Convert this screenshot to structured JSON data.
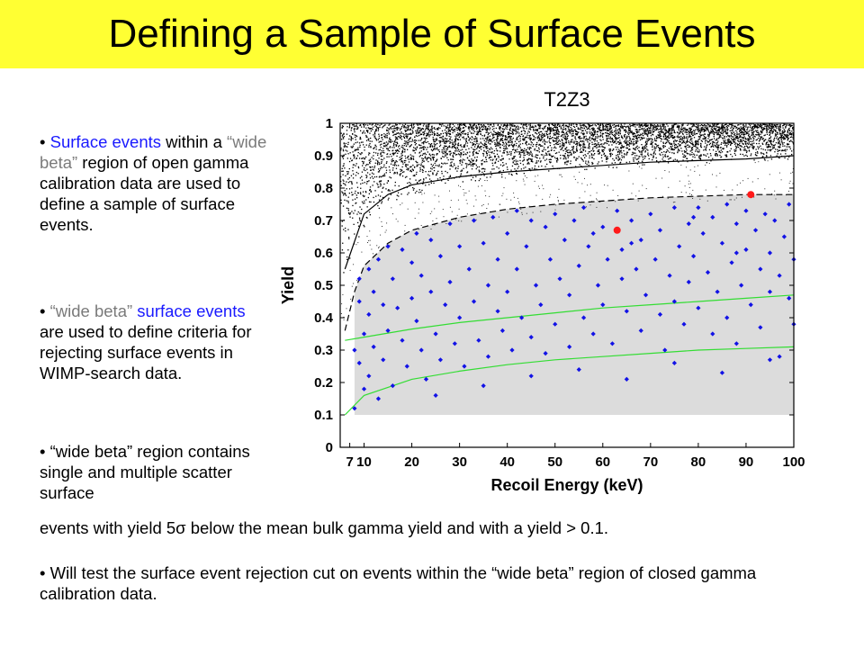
{
  "slide": {
    "title": "Defining a Sample of Surface Events",
    "bullets": [
      {
        "marker": "•",
        "parts": [
          {
            "text": "Surface events",
            "color": "blue"
          },
          {
            "text": " within a ",
            "color": "black"
          },
          {
            "text": "“wide beta”",
            "color": "gray"
          },
          {
            "text": " region of open gamma calibration data are used to define a sample of surface events.",
            "color": "black"
          }
        ]
      },
      {
        "marker": "•",
        "parts": [
          {
            "text": "“wide beta”",
            "color": "gray"
          },
          {
            "text": " surface events",
            "color": "blue"
          },
          {
            "text": " are used to define criteria for rejecting surface events in WIMP-search data.",
            "color": "black"
          }
        ]
      },
      {
        "marker": "•",
        "first_part": " “wide beta” region contains single and multiple scatter surface",
        "continuation": "events with yield 5σ below the mean bulk gamma yield and with a yield > 0.1."
      },
      {
        "marker": "•",
        "text": " Will test the surface event rejection cut on events within the “wide beta” region of closed gamma calibration data."
      }
    ]
  },
  "chart_data": {
    "type": "scatter",
    "title": "T2Z3",
    "xlabel": "Recoil Energy (keV)",
    "ylabel": "Yield",
    "xlim": [
      5,
      100
    ],
    "ylim": [
      0,
      1
    ],
    "x_ticks": [
      7,
      10,
      20,
      30,
      40,
      50,
      60,
      70,
      80,
      90,
      100
    ],
    "x_tick_labels": [
      "7",
      "10",
      "20",
      "30",
      "40",
      "50",
      "60",
      "70",
      "80",
      "90",
      "100"
    ],
    "y_ticks": [
      0,
      0.1,
      0.2,
      0.3,
      0.4,
      0.5,
      0.6,
      0.7,
      0.8,
      0.9,
      1
    ],
    "y_tick_labels": [
      "0",
      "0.1",
      "0.2",
      "0.3",
      "0.4",
      "0.5",
      "0.6",
      "0.7",
      "0.8",
      "0.9",
      "1"
    ],
    "grid": false,
    "wide_beta_region": {
      "x_range": [
        8,
        100
      ],
      "y_lower": 0.1,
      "upper_curve": [
        [
          6,
          0.36
        ],
        [
          8,
          0.48
        ],
        [
          10,
          0.56
        ],
        [
          15,
          0.63
        ],
        [
          20,
          0.67
        ],
        [
          30,
          0.71
        ],
        [
          40,
          0.735
        ],
        [
          50,
          0.75
        ],
        [
          60,
          0.76
        ],
        [
          70,
          0.77
        ],
        [
          80,
          0.775
        ],
        [
          90,
          0.78
        ],
        [
          100,
          0.78
        ]
      ],
      "fill": "#dcdcdc"
    },
    "bulk_gamma_band": {
      "lower_curve": [
        [
          6,
          0.5
        ],
        [
          8,
          0.62
        ],
        [
          10,
          0.68
        ],
        [
          15,
          0.74
        ],
        [
          20,
          0.78
        ],
        [
          30,
          0.815
        ],
        [
          40,
          0.835
        ],
        [
          50,
          0.85
        ],
        [
          60,
          0.86
        ],
        [
          70,
          0.87
        ],
        [
          80,
          0.878
        ],
        [
          90,
          0.885
        ],
        [
          100,
          0.89
        ]
      ],
      "upper_limit": 1.0,
      "color": "#000000"
    },
    "series": [
      {
        "kind": "surface events",
        "color": "#1212e6",
        "marker": "diamond",
        "points": [
          [
            8,
            0.3
          ],
          [
            8,
            0.12
          ],
          [
            9,
            0.45
          ],
          [
            9,
            0.26
          ],
          [
            9,
            0.52
          ],
          [
            10,
            0.35
          ],
          [
            10,
            0.18
          ],
          [
            11,
            0.55
          ],
          [
            11,
            0.41
          ],
          [
            11,
            0.22
          ],
          [
            12,
            0.48
          ],
          [
            12,
            0.31
          ],
          [
            13,
            0.58
          ],
          [
            13,
            0.15
          ],
          [
            14,
            0.44
          ],
          [
            14,
            0.27
          ],
          [
            15,
            0.62
          ],
          [
            15,
            0.36
          ],
          [
            16,
            0.52
          ],
          [
            16,
            0.19
          ],
          [
            17,
            0.43
          ],
          [
            18,
            0.61
          ],
          [
            18,
            0.33
          ],
          [
            19,
            0.25
          ],
          [
            20,
            0.57
          ],
          [
            20,
            0.46
          ],
          [
            21,
            0.66
          ],
          [
            21,
            0.39
          ],
          [
            22,
            0.3
          ],
          [
            22,
            0.53
          ],
          [
            23,
            0.21
          ],
          [
            24,
            0.64
          ],
          [
            24,
            0.48
          ],
          [
            25,
            0.35
          ],
          [
            26,
            0.59
          ],
          [
            26,
            0.27
          ],
          [
            27,
            0.44
          ],
          [
            28,
            0.69
          ],
          [
            28,
            0.51
          ],
          [
            29,
            0.32
          ],
          [
            30,
            0.62
          ],
          [
            30,
            0.4
          ],
          [
            31,
            0.25
          ],
          [
            32,
            0.55
          ],
          [
            33,
            0.7
          ],
          [
            33,
            0.45
          ],
          [
            34,
            0.33
          ],
          [
            35,
            0.63
          ],
          [
            36,
            0.5
          ],
          [
            36,
            0.28
          ],
          [
            37,
            0.71
          ],
          [
            38,
            0.42
          ],
          [
            38,
            0.58
          ],
          [
            39,
            0.36
          ],
          [
            40,
            0.66
          ],
          [
            40,
            0.48
          ],
          [
            41,
            0.3
          ],
          [
            42,
            0.73
          ],
          [
            42,
            0.55
          ],
          [
            43,
            0.4
          ],
          [
            44,
            0.62
          ],
          [
            45,
            0.34
          ],
          [
            45,
            0.7
          ],
          [
            46,
            0.5
          ],
          [
            47,
            0.44
          ],
          [
            48,
            0.68
          ],
          [
            48,
            0.29
          ],
          [
            49,
            0.58
          ],
          [
            50,
            0.72
          ],
          [
            50,
            0.38
          ],
          [
            51,
            0.52
          ],
          [
            52,
            0.64
          ],
          [
            53,
            0.31
          ],
          [
            53,
            0.47
          ],
          [
            54,
            0.7
          ],
          [
            55,
            0.56
          ],
          [
            56,
            0.4
          ],
          [
            56,
            0.74
          ],
          [
            57,
            0.62
          ],
          [
            58,
            0.35
          ],
          [
            59,
            0.5
          ],
          [
            60,
            0.68
          ],
          [
            60,
            0.44
          ],
          [
            61,
            0.58
          ],
          [
            62,
            0.32
          ],
          [
            63,
            0.73
          ],
          [
            64,
            0.52
          ],
          [
            64,
            0.61
          ],
          [
            65,
            0.42
          ],
          [
            66,
            0.7
          ],
          [
            67,
            0.55
          ],
          [
            68,
            0.36
          ],
          [
            68,
            0.64
          ],
          [
            69,
            0.47
          ],
          [
            70,
            0.72
          ],
          [
            71,
            0.58
          ],
          [
            72,
            0.41
          ],
          [
            72,
            0.67
          ],
          [
            73,
            0.3
          ],
          [
            74,
            0.53
          ],
          [
            75,
            0.74
          ],
          [
            75,
            0.45
          ],
          [
            76,
            0.62
          ],
          [
            77,
            0.38
          ],
          [
            78,
            0.69
          ],
          [
            78,
            0.51
          ],
          [
            79,
            0.59
          ],
          [
            80,
            0.74
          ],
          [
            80,
            0.43
          ],
          [
            81,
            0.66
          ],
          [
            82,
            0.54
          ],
          [
            83,
            0.35
          ],
          [
            83,
            0.71
          ],
          [
            84,
            0.48
          ],
          [
            85,
            0.63
          ],
          [
            86,
            0.75
          ],
          [
            86,
            0.4
          ],
          [
            87,
            0.57
          ],
          [
            88,
            0.69
          ],
          [
            88,
            0.32
          ],
          [
            89,
            0.5
          ],
          [
            90,
            0.73
          ],
          [
            90,
            0.61
          ],
          [
            91,
            0.44
          ],
          [
            92,
            0.67
          ],
          [
            93,
            0.55
          ],
          [
            93,
            0.37
          ],
          [
            94,
            0.72
          ],
          [
            95,
            0.6
          ],
          [
            95,
            0.48
          ],
          [
            96,
            0.7
          ],
          [
            97,
            0.53
          ],
          [
            97,
            0.28
          ],
          [
            98,
            0.65
          ],
          [
            99,
            0.75
          ],
          [
            99,
            0.46
          ],
          [
            100,
            0.58
          ],
          [
            100,
            0.38
          ],
          [
            25,
            0.16
          ],
          [
            35,
            0.19
          ],
          [
            45,
            0.22
          ],
          [
            55,
            0.24
          ],
          [
            65,
            0.21
          ],
          [
            75,
            0.26
          ],
          [
            85,
            0.23
          ],
          [
            95,
            0.27
          ],
          [
            58,
            0.66
          ],
          [
            66,
            0.63
          ],
          [
            79,
            0.71
          ],
          [
            88,
            0.6
          ]
        ]
      },
      {
        "kind": "highlighted events",
        "color": "#ff1a1a",
        "marker": "circle",
        "points": [
          [
            63,
            0.67
          ],
          [
            91,
            0.78
          ]
        ]
      }
    ],
    "reference_curves": [
      {
        "style": "solid",
        "color": "#000000",
        "points": [
          [
            6,
            0.55
          ],
          [
            10,
            0.72
          ],
          [
            15,
            0.78
          ],
          [
            20,
            0.81
          ],
          [
            30,
            0.835
          ],
          [
            40,
            0.85
          ],
          [
            50,
            0.86
          ],
          [
            60,
            0.87
          ],
          [
            70,
            0.88
          ],
          [
            80,
            0.885
          ],
          [
            90,
            0.89
          ],
          [
            100,
            0.9
          ]
        ]
      },
      {
        "style": "dashed",
        "color": "#000000",
        "points": [
          [
            6,
            0.36
          ],
          [
            8,
            0.48
          ],
          [
            10,
            0.56
          ],
          [
            15,
            0.63
          ],
          [
            20,
            0.67
          ],
          [
            30,
            0.71
          ],
          [
            40,
            0.735
          ],
          [
            50,
            0.75
          ],
          [
            60,
            0.76
          ],
          [
            70,
            0.77
          ],
          [
            80,
            0.775
          ],
          [
            90,
            0.78
          ],
          [
            100,
            0.78
          ]
        ]
      },
      {
        "style": "solid",
        "color": "#33dd33",
        "points": [
          [
            6,
            0.33
          ],
          [
            10,
            0.34
          ],
          [
            20,
            0.365
          ],
          [
            30,
            0.385
          ],
          [
            40,
            0.4
          ],
          [
            50,
            0.415
          ],
          [
            60,
            0.43
          ],
          [
            70,
            0.44
          ],
          [
            80,
            0.45
          ],
          [
            90,
            0.46
          ],
          [
            100,
            0.47
          ]
        ]
      },
      {
        "style": "solid",
        "color": "#33dd33",
        "points": [
          [
            6,
            0.1
          ],
          [
            10,
            0.16
          ],
          [
            20,
            0.21
          ],
          [
            30,
            0.235
          ],
          [
            40,
            0.255
          ],
          [
            50,
            0.27
          ],
          [
            60,
            0.28
          ],
          [
            70,
            0.29
          ],
          [
            80,
            0.3
          ],
          [
            90,
            0.305
          ],
          [
            100,
            0.31
          ]
        ]
      }
    ]
  }
}
